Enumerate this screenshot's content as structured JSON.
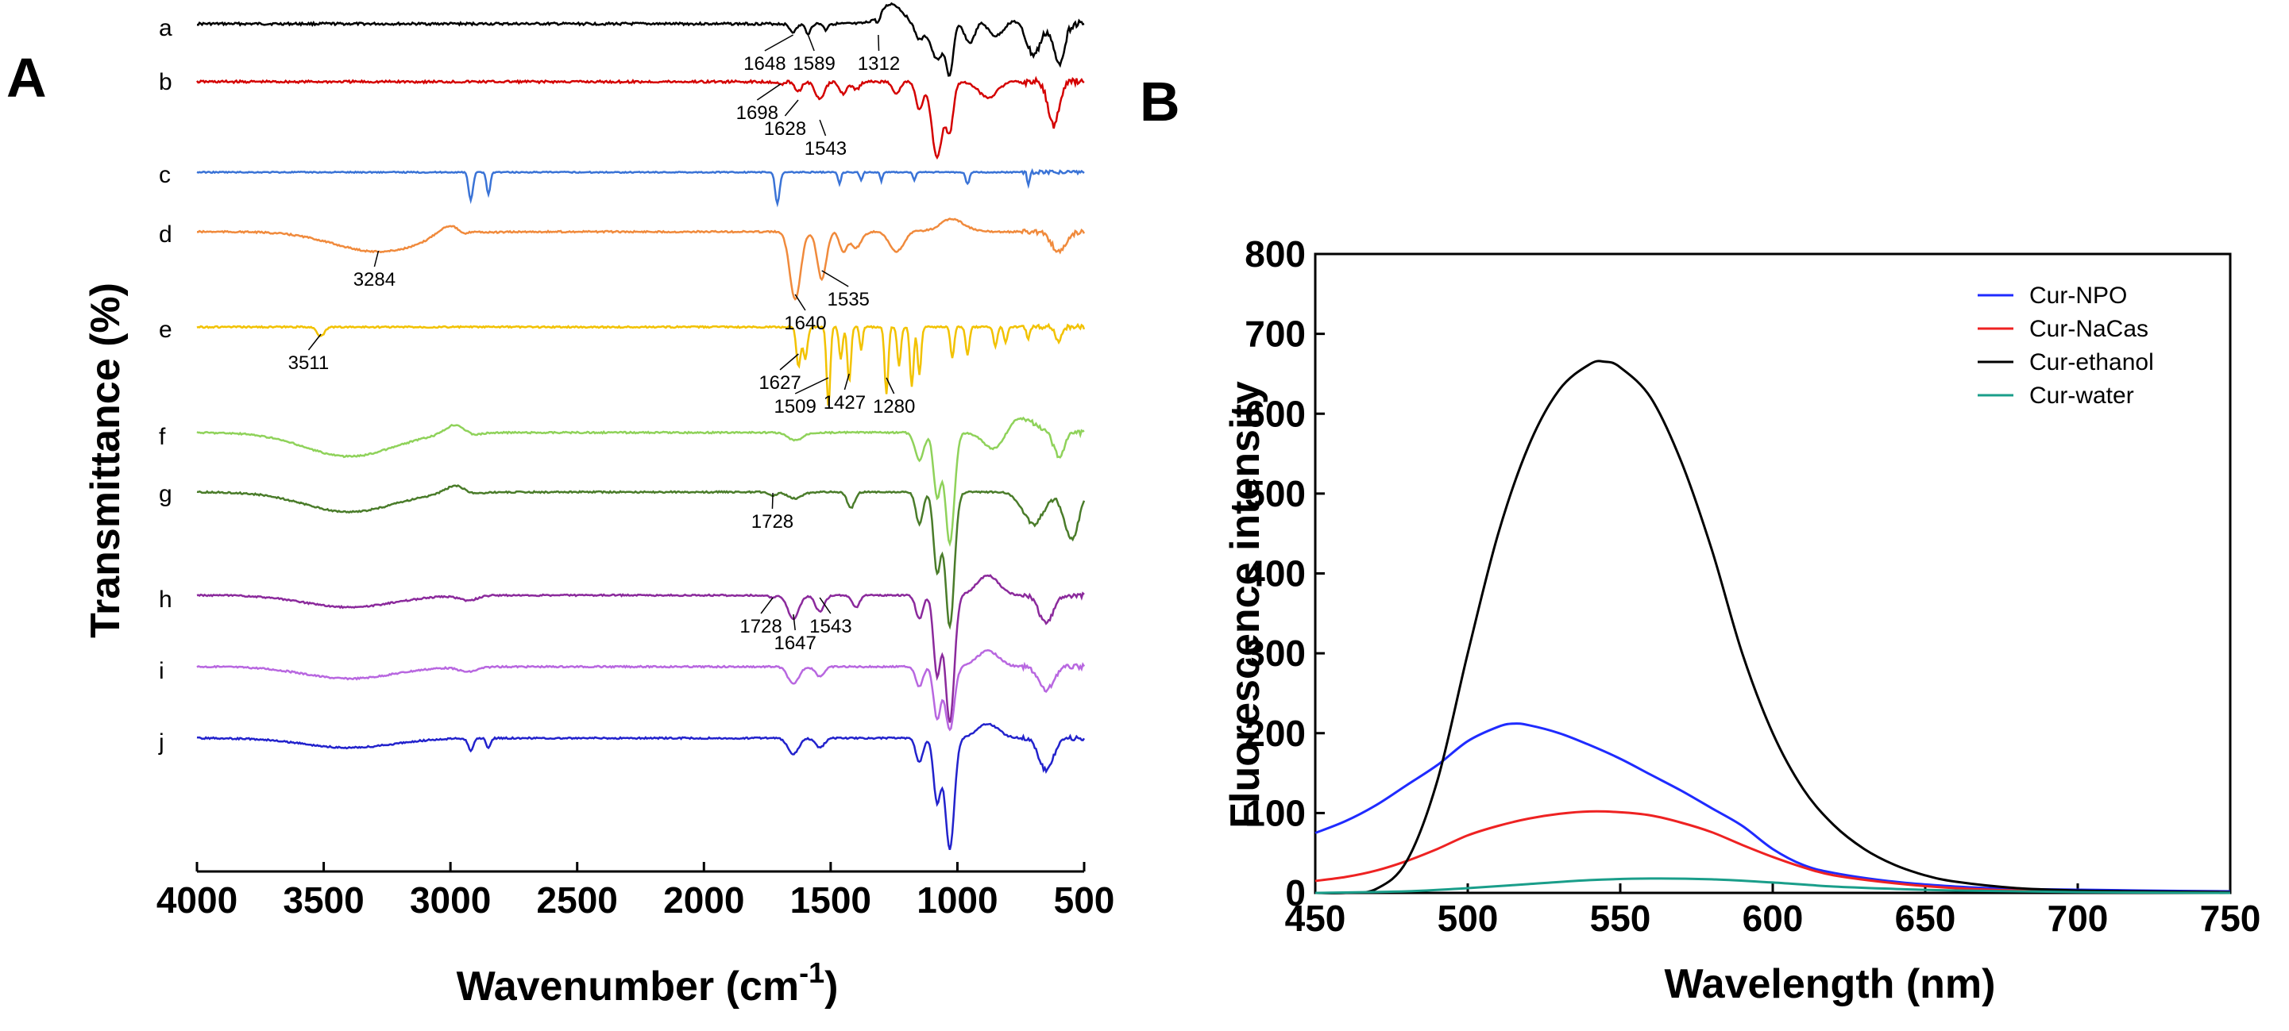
{
  "chart_data": [
    {
      "panel": "A",
      "type": "line",
      "xlabel": "Wavenumber (cm",
      "xlabel_sup": "-1",
      "xlabel_close": ")",
      "ylabel": "Transmittance (%)",
      "xlim": [
        4000,
        500
      ],
      "xticks": [
        "4000",
        "3500",
        "3000",
        "2500",
        "2000",
        "1500",
        "1000",
        "500"
      ],
      "series": [
        {
          "name": "a",
          "color": "#000000",
          "peaks": [
            "1648",
            "1589",
            "1312"
          ]
        },
        {
          "name": "b",
          "color": "#d40000",
          "peaks": [
            "1698",
            "1628",
            "1543"
          ]
        },
        {
          "name": "c",
          "color": "#3a73d6",
          "peaks": []
        },
        {
          "name": "d",
          "color": "#f08a3c",
          "peaks": [
            "3284",
            "1535",
            "1640"
          ]
        },
        {
          "name": "e",
          "color": "#f2c200",
          "peaks": [
            "3511",
            "1627",
            "1509",
            "1427",
            "1280"
          ]
        },
        {
          "name": "f",
          "color": "#8fd25a",
          "peaks": []
        },
        {
          "name": "g",
          "color": "#4a7c2a",
          "peaks": [
            "1728"
          ]
        },
        {
          "name": "h",
          "color": "#8b2a9c",
          "peaks": [
            "1728",
            "1647",
            "1543"
          ]
        },
        {
          "name": "i",
          "color": "#b867e0",
          "peaks": []
        },
        {
          "name": "j",
          "color": "#2222cc",
          "peaks": []
        }
      ]
    },
    {
      "panel": "B",
      "type": "line",
      "xlabel": "Wavelength (nm)",
      "ylabel": "Fluorescence intensity",
      "xlim": [
        450,
        750
      ],
      "ylim": [
        0,
        800
      ],
      "xticks": [
        "450",
        "500",
        "550",
        "600",
        "650",
        "700",
        "750"
      ],
      "yticks": [
        "0",
        "100",
        "200",
        "300",
        "400",
        "500",
        "600",
        "700",
        "800"
      ],
      "legend_position": "top-right",
      "series": [
        {
          "name": "Cur-NPO",
          "color": "#1f2bff",
          "x": [
            450,
            460,
            470,
            480,
            490,
            500,
            510,
            515,
            520,
            530,
            540,
            550,
            560,
            570,
            580,
            590,
            600,
            610,
            620,
            640,
            660,
            680,
            700,
            720,
            750
          ],
          "y": [
            75,
            90,
            110,
            135,
            160,
            190,
            208,
            212,
            210,
            200,
            185,
            168,
            148,
            128,
            106,
            84,
            55,
            35,
            25,
            14,
            8,
            5,
            4,
            3,
            2
          ]
        },
        {
          "name": "Cur-NaCas",
          "color": "#ee2222",
          "x": [
            450,
            460,
            470,
            480,
            490,
            500,
            510,
            520,
            530,
            540,
            550,
            560,
            570,
            580,
            590,
            600,
            610,
            620,
            640,
            660,
            680,
            700,
            750
          ],
          "y": [
            15,
            20,
            28,
            40,
            55,
            72,
            84,
            93,
            99,
            102,
            101,
            97,
            88,
            76,
            60,
            45,
            32,
            22,
            12,
            6,
            3,
            2,
            1
          ]
        },
        {
          "name": "Cur-ethanol",
          "color": "#000000",
          "x": [
            450,
            460,
            470,
            480,
            490,
            500,
            510,
            520,
            530,
            540,
            545,
            550,
            560,
            570,
            580,
            590,
            600,
            610,
            620,
            630,
            640,
            650,
            660,
            680,
            700,
            720,
            750
          ],
          "y": [
            0,
            0,
            5,
            40,
            140,
            300,
            450,
            560,
            630,
            662,
            665,
            658,
            620,
            540,
            430,
            300,
            200,
            130,
            85,
            55,
            35,
            22,
            14,
            6,
            3,
            2,
            1
          ]
        },
        {
          "name": "Cur-water",
          "color": "#1a9e8a",
          "x": [
            450,
            480,
            500,
            520,
            540,
            560,
            580,
            600,
            620,
            640,
            660,
            700,
            750
          ],
          "y": [
            0,
            2,
            6,
            11,
            16,
            18,
            17,
            13,
            8,
            5,
            3,
            1,
            0
          ]
        }
      ]
    }
  ]
}
